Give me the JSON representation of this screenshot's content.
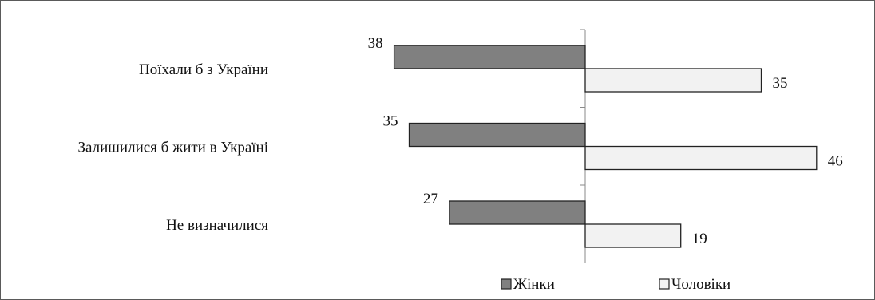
{
  "chart_data": {
    "type": "bar",
    "orientation": "horizontal",
    "categories": [
      "Поїхали б з України",
      "Залишилися б жити в Україні",
      "Не визначилися"
    ],
    "series": [
      {
        "name": "Жінки",
        "values": [
          38,
          35,
          27
        ],
        "color": "#808080",
        "direction": "left"
      },
      {
        "name": "Чоловіки",
        "values": [
          35,
          46,
          19
        ],
        "color": "#f2f2f2",
        "direction": "right"
      }
    ],
    "data_labels": true,
    "legend_position": "bottom",
    "grid": false
  }
}
